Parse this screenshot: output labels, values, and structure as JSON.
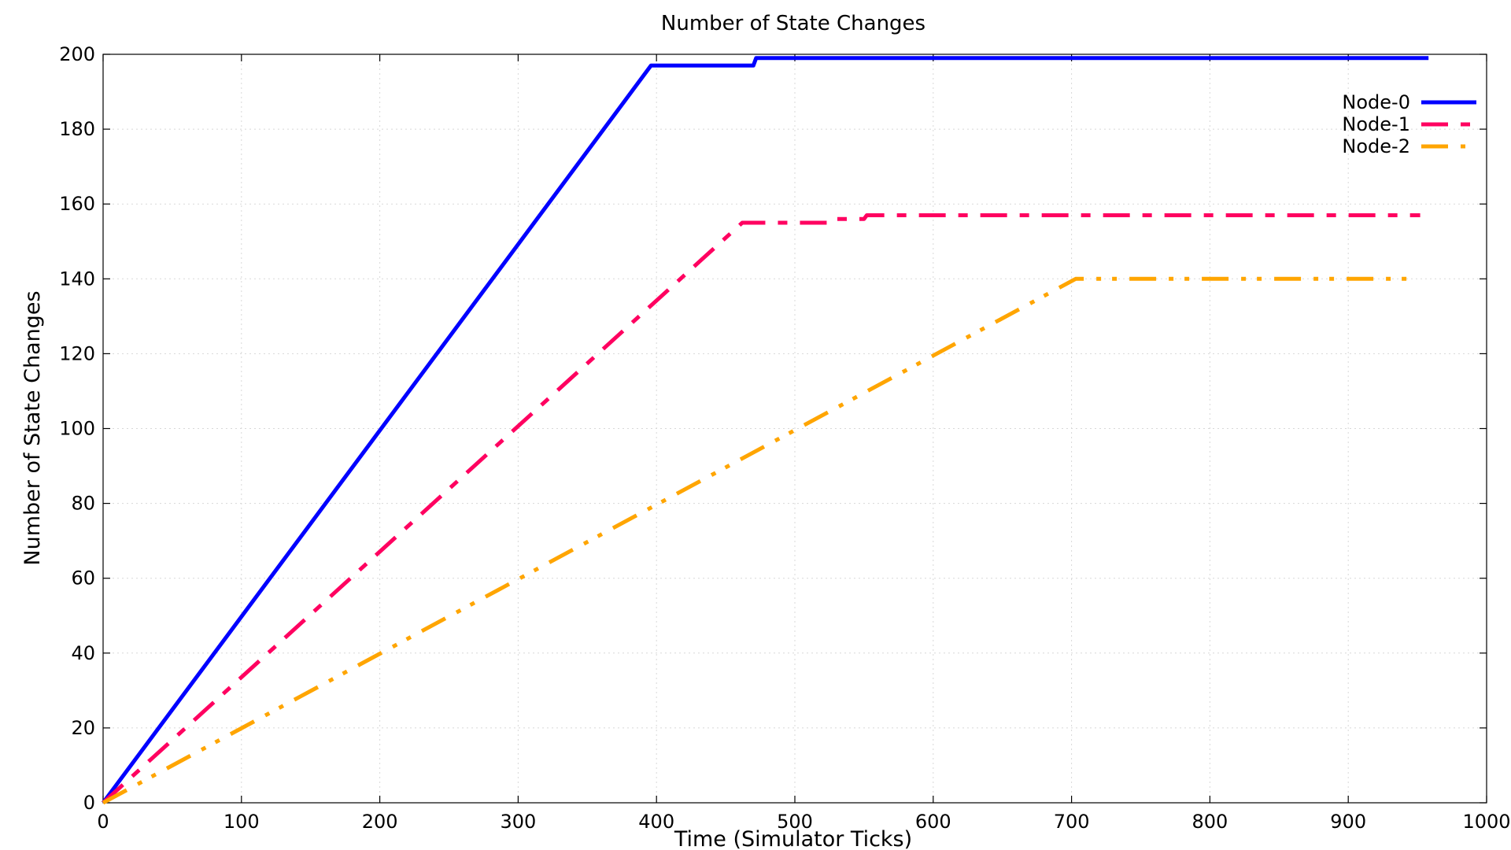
{
  "chart_data": {
    "type": "line",
    "title": "Number of State Changes",
    "xlabel": "Time (Simulator Ticks)",
    "ylabel": "Number of State Changes",
    "xlim": [
      0,
      1000
    ],
    "ylim": [
      0,
      200
    ],
    "xticks": [
      0,
      100,
      200,
      300,
      400,
      500,
      600,
      700,
      800,
      900,
      1000
    ],
    "yticks": [
      0,
      20,
      40,
      60,
      80,
      100,
      120,
      140,
      160,
      180,
      200
    ],
    "grid": true,
    "legend_position": "top-right",
    "series": [
      {
        "name": "Node-0",
        "color": "#0000ff",
        "dash": "solid",
        "points": [
          [
            0,
            0
          ],
          [
            396,
            197
          ],
          [
            470,
            197
          ],
          [
            472,
            199
          ],
          [
            958,
            199
          ]
        ]
      },
      {
        "name": "Node-1",
        "color": "#ff0060",
        "dash": "dash-dot",
        "points": [
          [
            0,
            0
          ],
          [
            462,
            155
          ],
          [
            527,
            155
          ],
          [
            529,
            156
          ],
          [
            550,
            156
          ],
          [
            552,
            157
          ],
          [
            952,
            157
          ]
        ]
      },
      {
        "name": "Node-2",
        "color": "#ffa500",
        "dash": "dash-dot-dot",
        "points": [
          [
            0,
            0
          ],
          [
            703,
            140
          ],
          [
            950,
            140
          ]
        ]
      }
    ]
  }
}
